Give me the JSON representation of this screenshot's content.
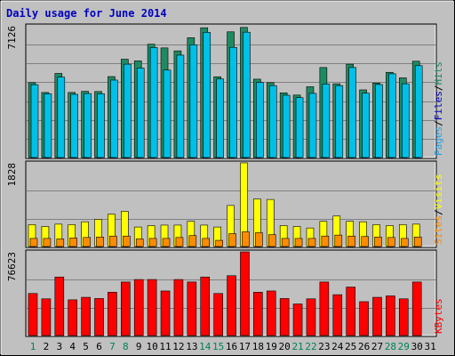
{
  "chart_data": {
    "type": "bar",
    "title": "Daily usage for June 2014",
    "colors": {
      "pages": "#1e8a62",
      "files": "#26a2e0",
      "hits": "#00c0e8",
      "visits": "#ffff00",
      "sites": "#ff8c00",
      "kbytes": "#ff0000",
      "weekend_day": "#00805a",
      "weekday": "#000000"
    },
    "categories": [
      "1",
      "2",
      "3",
      "4",
      "5",
      "6",
      "7",
      "8",
      "9",
      "10",
      "11",
      "12",
      "13",
      "14",
      "15",
      "16",
      "17",
      "18",
      "19",
      "20",
      "21",
      "22",
      "23",
      "24",
      "25",
      "26",
      "27",
      "28",
      "29",
      "30",
      "31"
    ],
    "weekend_days": [
      "1",
      "7",
      "8",
      "14",
      "15",
      "21",
      "22",
      "28",
      "29"
    ],
    "panels": [
      {
        "id": "hits",
        "ymax": 7126,
        "ymax_label": "7126",
        "legend": [
          {
            "text": "Pages",
            "color": "#26a2e0"
          },
          {
            "text": "Files",
            "color": "#0000c0"
          },
          {
            "text": "Hits",
            "color": "#1e8a62"
          }
        ],
        "series": [
          {
            "name": "Hits",
            "values": [
              4050,
              3520,
              4550,
              3520,
              3580,
              3570,
              4380,
              5320,
              5230,
              6130,
              5930,
              5770,
              6480,
              7020,
              4370,
              6800,
              7040,
              4240,
              4050,
              3500,
              3380,
              3830,
              4870,
              3990,
              5050,
              3660,
              4030,
              4610,
              4310,
              5210,
              0
            ]
          },
          {
            "name": "Files",
            "values": [
              3940,
              3450,
              4350,
              3420,
              3460,
              3450,
              4190,
              5050,
              4840,
              5950,
              4730,
              5540,
              6100,
              6770,
              4250,
              5960,
              6780,
              4060,
              3890,
              3370,
              3240,
              3470,
              3970,
              3890,
              4870,
              3480,
              3950,
              4530,
              3990,
              4970,
              0
            ]
          },
          {
            "name": "Pages",
            "values": [
              0,
              0,
              0,
              0,
              0,
              0,
              0,
              0,
              0,
              0,
              0,
              0,
              0,
              0,
              0,
              0,
              0,
              0,
              0,
              0,
              0,
              0,
              0,
              0,
              0,
              0,
              0,
              0,
              0,
              0,
              0
            ]
          }
        ]
      },
      {
        "id": "visits",
        "ymax": 1828,
        "ymax_label": "1828",
        "legend": [
          {
            "text": "Sites",
            "color": "#ff8c00"
          },
          {
            "text": "Visits",
            "color": "#ffff00"
          }
        ],
        "series": [
          {
            "name": "Visits",
            "values": [
              478,
              437,
              489,
              478,
              541,
              593,
              707,
              770,
              426,
              457,
              468,
              468,
              551,
              468,
              426,
              897,
              1828,
              1038,
              1028,
              457,
              437,
              405,
              551,
              666,
              551,
              541,
              478,
              457,
              478,
              489,
              0
            ]
          },
          {
            "name": "Sites",
            "values": [
              177,
              177,
              166,
              187,
              198,
              208,
              229,
              229,
              166,
              177,
              177,
              198,
              239,
              177,
              135,
              281,
              322,
              302,
              260,
              177,
              177,
              177,
              229,
              250,
              229,
              219,
              208,
              198,
              177,
              208,
              0
            ]
          }
        ]
      },
      {
        "id": "kbytes",
        "ymax": 76623,
        "ymax_label": "76623",
        "legend": [
          {
            "text": "KBytes",
            "color": "#ff0000"
          }
        ],
        "series": [
          {
            "name": "KBytes",
            "values": [
              38500,
              33600,
              53600,
              32700,
              35000,
              33900,
              39700,
              49000,
              51300,
              51300,
              40800,
              51300,
              49000,
              53600,
              38500,
              54800,
              76600,
              39700,
              40800,
              33900,
              28900,
              33600,
              49000,
              37400,
              44400,
              31000,
              35000,
              36300,
              33600,
              49000,
              0
            ]
          }
        ]
      }
    ]
  }
}
